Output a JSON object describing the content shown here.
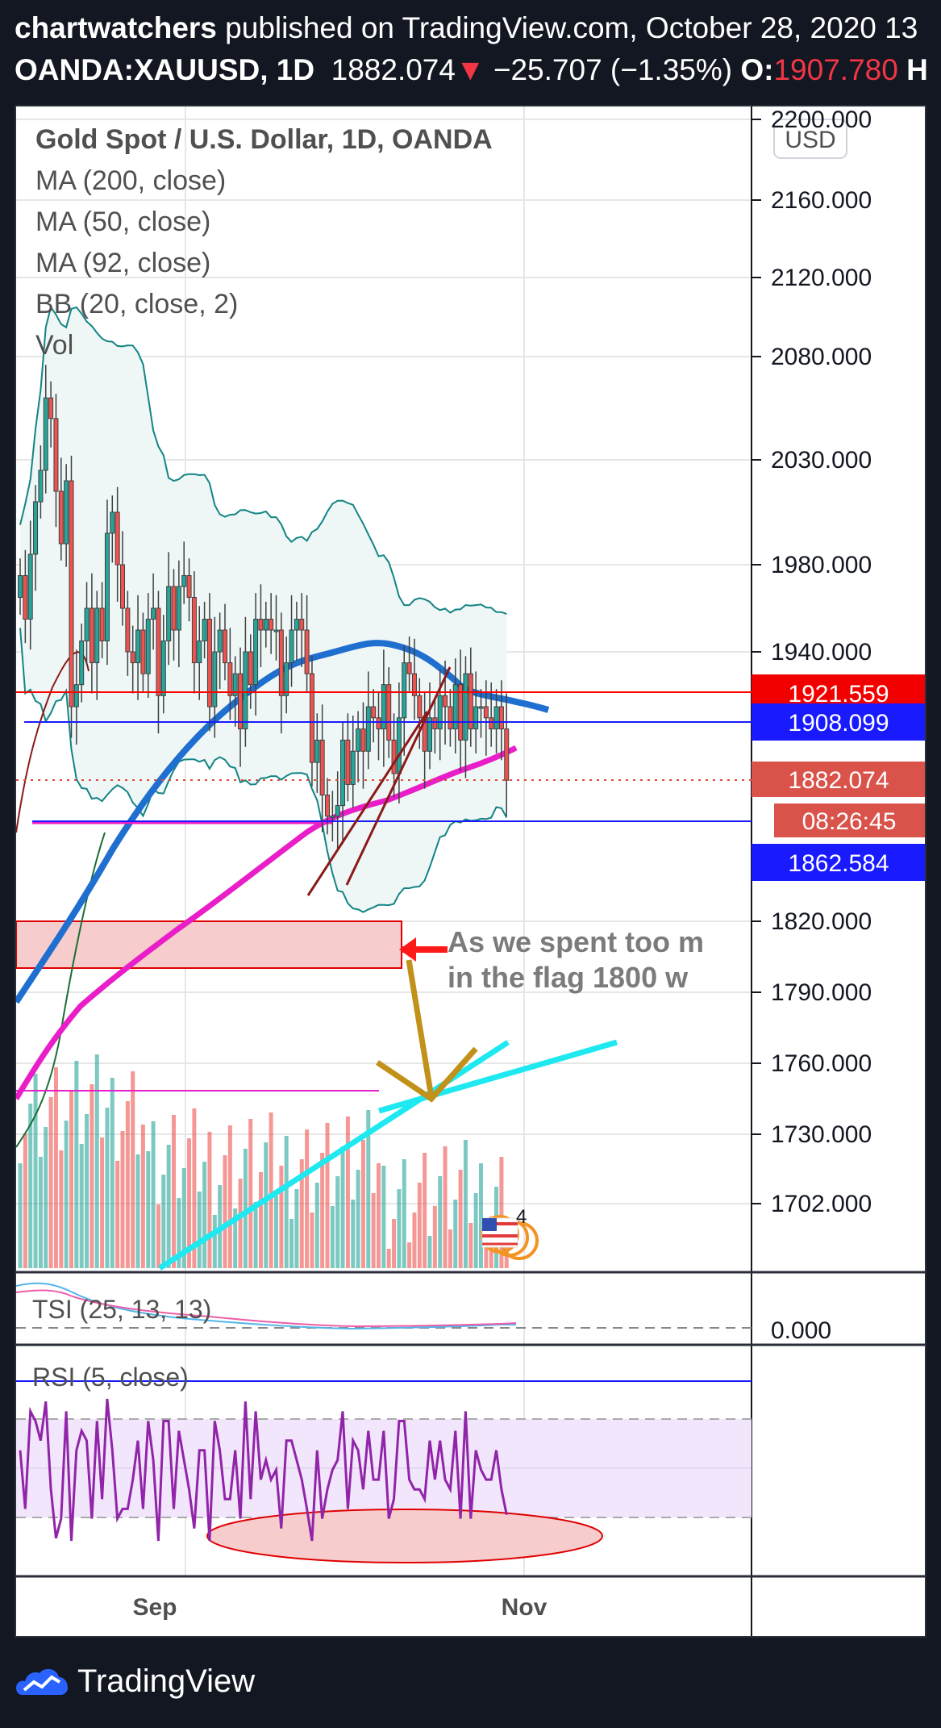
{
  "header": {
    "author": "chartwatchers",
    "published": "published on TradingView.com, October 28, 2020 13",
    "symbol": "OANDA:XAUUSD, 1D",
    "last": "1882.074",
    "change": "−25.707 (−1.35%)",
    "open_label": "O:",
    "open_value": "1907.780",
    "next_label": "H"
  },
  "legend": {
    "title": "Gold Spot / U.S. Dollar, 1D, OANDA",
    "ma200": "MA (200, close)",
    "ma50": "MA (50, close)",
    "ma92": "MA (92, close)",
    "bb": "BB (20, close, 2)",
    "vol": "Vol"
  },
  "currency_button": "USD",
  "price_scale": [
    "2200.000",
    "2160.000",
    "2120.000",
    "2080.000",
    "2030.000",
    "1980.000",
    "1940.000",
    "1820.000",
    "1790.000",
    "1760.000",
    "1730.000",
    "1702.000"
  ],
  "price_labels": {
    "red_line": "1921.559",
    "blue_line": "1908.099",
    "last_price": "1882.074",
    "countdown": "08:26:45",
    "blue_low": "1862.584"
  },
  "annotation": {
    "line1": "As we spent too m",
    "line2": "in the flag 1800 w"
  },
  "event_badge": "4",
  "tsi": {
    "label": "TSI (25, 13, 13)",
    "scale": "0.000"
  },
  "rsi": {
    "label": "RSI (5, close)"
  },
  "time_axis": [
    "Sep",
    "Nov"
  ],
  "footer": "TradingView",
  "colors": {
    "bg": "#131722",
    "up": "#26a69a",
    "down": "#ef5350",
    "ma50": "#1f6fd1",
    "ma92": "#e91ec8",
    "bb": "#138484",
    "red_level": "#ff0000",
    "blue_level": "#1a1aff",
    "cyan": "#1ee9f0",
    "gold": "#c1911a"
  },
  "chart_data": {
    "type": "candlestick",
    "title": "Gold Spot / U.S. Dollar, 1D, OANDA",
    "ylim": [
      1680,
      2205
    ],
    "levels": {
      "resistance": 1921.559,
      "mid": 1908.099,
      "support": 1862.584,
      "last": 1882.074
    },
    "closes": [
      1975,
      1955,
      1985,
      2010,
      2025,
      2060,
      2050,
      2015,
      1990,
      2020,
      1915,
      1925,
      1945,
      1960,
      1935,
      1960,
      1945,
      1995,
      2005,
      1980,
      1960,
      1940,
      1935,
      1950,
      1930,
      1955,
      1960,
      1920,
      1945,
      1970,
      1950,
      1970,
      1975,
      1965,
      1935,
      1945,
      1955,
      1915,
      1940,
      1950,
      1935,
      1920,
      1930,
      1905,
      1940,
      1925,
      1955,
      1950,
      1955,
      1950,
      1950,
      1920,
      1935,
      1950,
      1955,
      1950,
      1930,
      1890,
      1900,
      1875,
      1865,
      1865,
      1870,
      1900,
      1880,
      1895,
      1905,
      1895,
      1915,
      1910,
      1905,
      1925,
      1900,
      1885,
      1910,
      1935,
      1930,
      1920,
      1910,
      1895,
      1910,
      1905,
      1920,
      1915,
      1905,
      1925,
      1900,
      1930,
      1905,
      1915,
      1915,
      1910,
      1905,
      1915,
      1905,
      1882
    ],
    "tsi_label": "TSI (25, 13, 13)",
    "rsi_label": "RSI (5, close)",
    "x_ticks": [
      "Sep",
      "Nov"
    ]
  }
}
